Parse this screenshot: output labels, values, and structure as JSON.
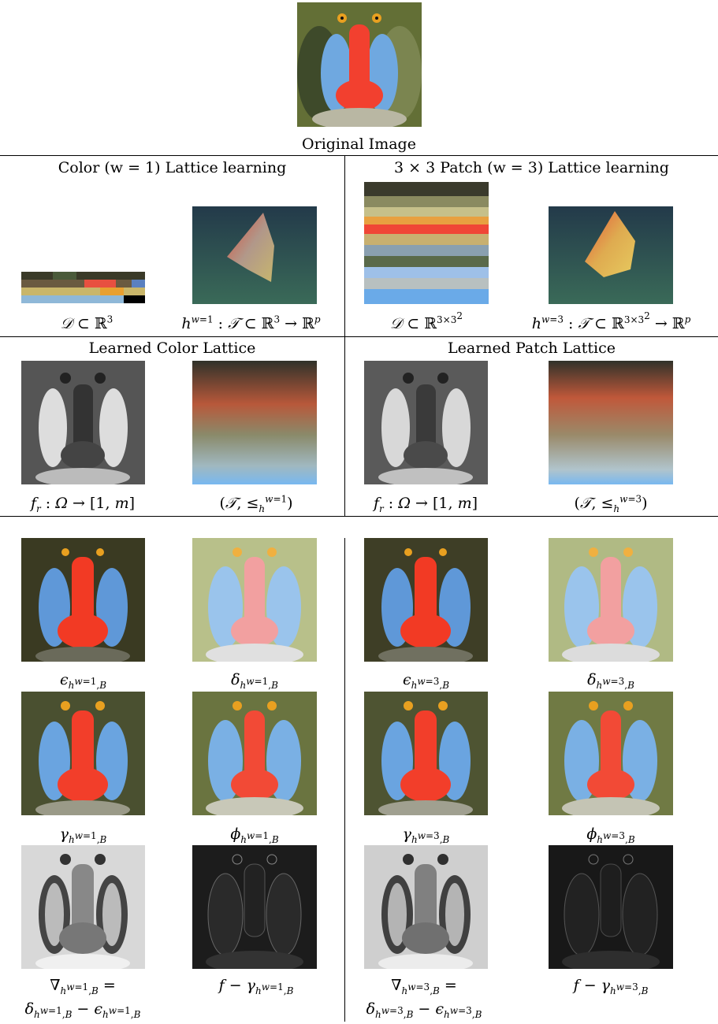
{
  "original": {
    "caption": "Original Image"
  },
  "sections": {
    "color_lattice_learning": "Color (w = 1) Lattice learning",
    "patch_lattice_learning": "3 × 3 Patch (w = 3) Lattice learning",
    "learned_color_lattice": "Learned Color Lattice",
    "learned_patch_lattice": "Learned Patch Lattice"
  },
  "captions": {
    "D_color": "𝒟 ⊂ ℝ³",
    "h_color": "hʷ⁼¹ : 𝒯 ⊂ ℝ³ → ℝᵖ",
    "D_patch": "𝒟 ⊂ ℝ³ˣ³²",
    "h_patch": "hʷ⁼³ : 𝒯 ⊂ ℝ³ˣ³² → ℝᵖ",
    "fr_color": "fᵣ : Ω → [1, m]",
    "order_color": "(𝒯, ≤ₕʷ⁼¹)",
    "fr_patch": "fᵣ : Ω → [1, m]",
    "order_patch": "(𝒯, ≤ₕʷ⁼³)",
    "eps1": "ε_{hʷ⁼¹,B}",
    "delta1": "δ_{hʷ⁼¹,B}",
    "eps3": "ε_{hʷ⁼³,B}",
    "delta3": "δ_{hʷ⁼³,B}",
    "gamma1": "γ_{hʷ⁼¹,B}",
    "phi1": "φ_{hʷ⁼¹,B}",
    "gamma3": "γ_{hʷ⁼³,B}",
    "phi3": "φ_{hʷ⁼³,B}",
    "grad1_a": "∇_{hʷ⁼¹,B} =",
    "grad1_b": "δ_{hʷ⁼¹,B} − ε_{hʷ⁼¹,B}",
    "resid1": "f − γ_{hʷ⁼¹,B}",
    "grad3_a": "∇_{hʷ⁼³,B} =",
    "grad3_b": "δ_{hʷ⁼³,B} − ε_{hʷ⁼³,B}",
    "resid3": "f − γ_{hʷ⁼³,B}"
  },
  "colors": {
    "nose_red": "#f2402f",
    "cheek_blue": "#6fa8e0",
    "fur_olive": "#6b6a3a",
    "eye_orange": "#e8a020",
    "lattice_bg": "#2d4a52"
  }
}
